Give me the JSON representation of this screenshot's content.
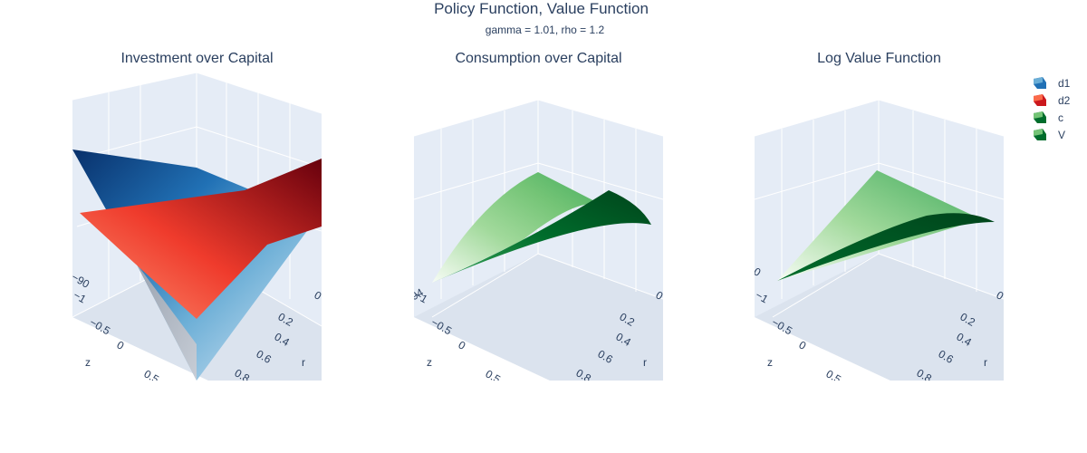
{
  "title": "Policy Function, Value Function",
  "subtitle": "gamma = 1.01, rho = 1.2",
  "chart_data": [
    {
      "type": "surface",
      "title": "Investment over Capital",
      "axes": {
        "x": "",
        "y": "r",
        "z": "z"
      },
      "z_ticks": [
        "−1",
        "−0.5",
        "0",
        "0.5"
      ],
      "r_ticks": [
        "0",
        "0.2",
        "0.4",
        "0.6",
        "0.8"
      ],
      "vertical_ticks": [
        "−90",
        ""
      ],
      "series": [
        {
          "name": "d1",
          "colorscale": "Blues"
        },
        {
          "name": "d2",
          "colorscale": "Reds"
        }
      ]
    },
    {
      "type": "surface",
      "title": "Consumption over Capital",
      "axes": {
        "x": "",
        "y": "r",
        "z": "z"
      },
      "z_ticks": [
        "−1",
        "−0.5",
        "0",
        "0.5"
      ],
      "r_ticks": [
        "0",
        "0.2",
        "0.4",
        "0.6",
        "0.8"
      ],
      "vertical_ticks": [
        "194"
      ],
      "series": [
        {
          "name": "c",
          "colorscale": "Greens"
        }
      ]
    },
    {
      "type": "surface",
      "title": "Log Value Function",
      "axes": {
        "x": "",
        "y": "r",
        "z": "z"
      },
      "z_ticks": [
        "−1",
        "−0.5",
        "0",
        "0.5"
      ],
      "r_ticks": [
        "0",
        "0.2",
        "0.4",
        "0.6",
        "0.8"
      ],
      "vertical_ticks": [
        "0"
      ],
      "series": [
        {
          "name": "V",
          "colorscale": "Greens"
        }
      ]
    }
  ],
  "legend": [
    {
      "name": "d1",
      "colors": [
        "#08306b",
        "#6baed6"
      ]
    },
    {
      "name": "d2",
      "colors": [
        "#67000d",
        "#fb6a4a"
      ]
    },
    {
      "name": "c",
      "colors": [
        "#00441b",
        "#74c476"
      ]
    },
    {
      "name": "V",
      "colors": [
        "#00441b",
        "#74c476"
      ]
    }
  ]
}
